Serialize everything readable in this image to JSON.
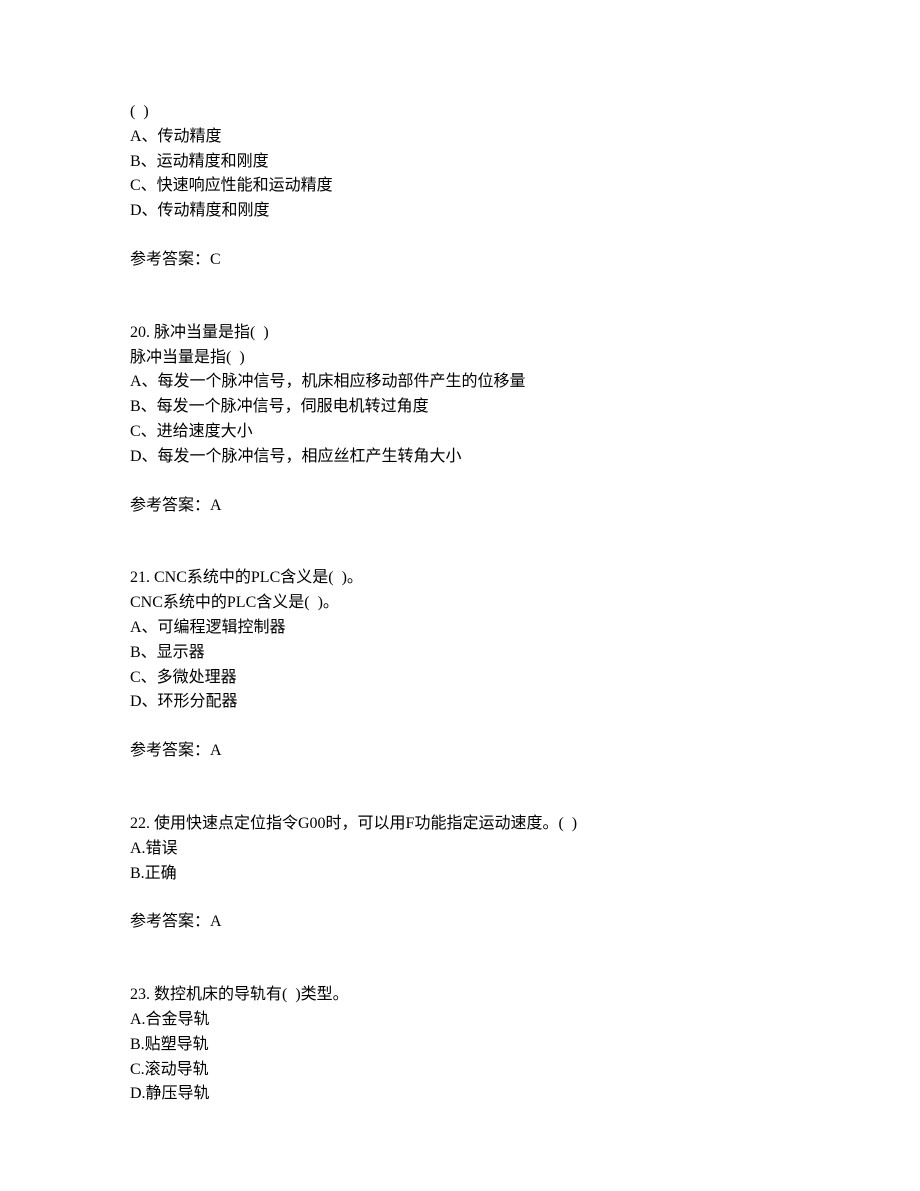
{
  "q19": {
    "stem": "(  )",
    "a": "A、传动精度",
    "b": "B、运动精度和刚度",
    "c": "C、快速响应性能和运动精度",
    "d": "D、传动精度和刚度",
    "ans": "参考答案：C"
  },
  "q20": {
    "title": "20. 脉冲当量是指(  )",
    "stem": "脉冲当量是指(  )",
    "a": "A、每发一个脉冲信号，机床相应移动部件产生的位移量",
    "b": "B、每发一个脉冲信号，伺服电机转过角度",
    "c": "C、进给速度大小",
    "d": "D、每发一个脉冲信号，相应丝杠产生转角大小",
    "ans": "参考答案：A"
  },
  "q21": {
    "title": "21. CNC系统中的PLC含义是(  )。",
    "stem": "CNC系统中的PLC含义是(  )。",
    "a": "A、可编程逻辑控制器",
    "b": "B、显示器",
    "c": "C、多微处理器",
    "d": "D、环形分配器",
    "ans": "参考答案：A"
  },
  "q22": {
    "title": "22. 使用快速点定位指令G00时，可以用F功能指定运动速度。(  )",
    "a": "A.错误",
    "b": "B.正确",
    "ans": "参考答案：A"
  },
  "q23": {
    "title": "23. 数控机床的导轨有(  )类型。",
    "a": "A.合金导轨",
    "b": "B.贴塑导轨",
    "c": "C.滚动导轨",
    "d": "D.静压导轨"
  }
}
